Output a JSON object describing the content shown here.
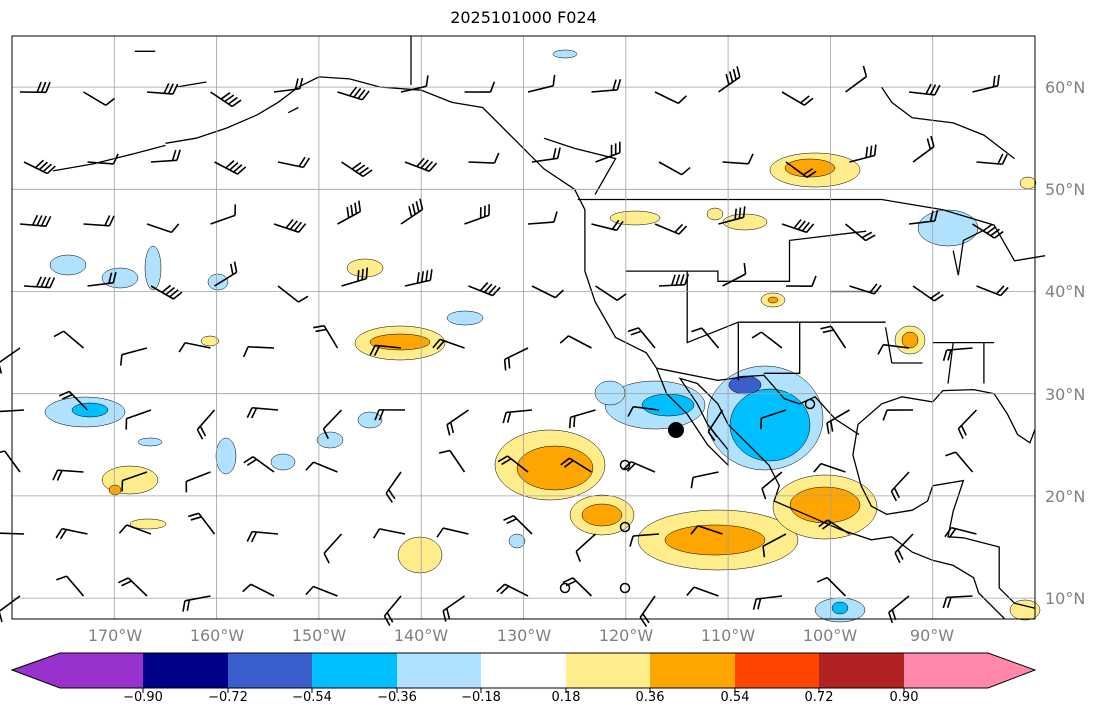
{
  "title": "2025101000 F024",
  "map": {
    "projection": "PlateCarree",
    "lon_range": [
      -180,
      -80
    ],
    "lat_range": [
      8,
      65
    ],
    "lat_labels": [
      "60°N",
      "50°N",
      "40°N",
      "30°N",
      "20°N",
      "10°N"
    ],
    "lon_labels": [
      "170°W",
      "160°W",
      "150°W",
      "140°W",
      "130°W",
      "120°W",
      "110°W",
      "100°W",
      "90°W"
    ],
    "coastline_color": "#000000",
    "grid_color": "#a0a0a0"
  },
  "colorbar": {
    "ticks": [
      "−0.90",
      "−0.72",
      "−0.54",
      "−0.36",
      "−0.18",
      "0.18",
      "0.36",
      "0.54",
      "0.72",
      "0.90"
    ],
    "colors": [
      "#9932cc",
      "#00008b",
      "#3a5fcd",
      "#00bfff",
      "#b0e2ff",
      "#ffffff",
      "#ffec8b",
      "#ffa500",
      "#ff4500",
      "#b22222",
      "#ff88aa"
    ],
    "extend": "both"
  }
}
